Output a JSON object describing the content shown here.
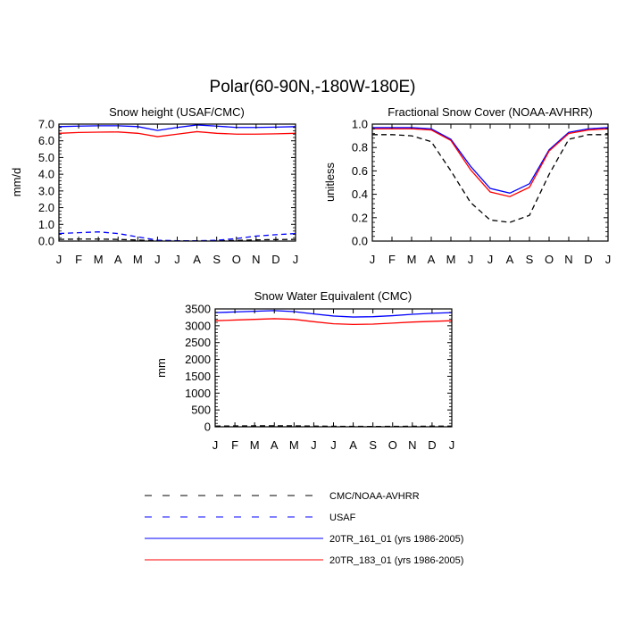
{
  "page_title": "Polar(60-90N,-180W-180E)",
  "months": [
    "J",
    "F",
    "M",
    "A",
    "M",
    "J",
    "J",
    "A",
    "S",
    "O",
    "N",
    "D",
    "J"
  ],
  "legend": [
    {
      "label": "CMC/NOAA-AVHRR",
      "color": "#000000",
      "dashed": true
    },
    {
      "label": "USAF",
      "color": "#0000ff",
      "dashed": true
    },
    {
      "label": "20TR_161_01 (yrs 1986-2005)",
      "color": "#0000ff",
      "dashed": false
    },
    {
      "label": "20TR_183_01 (yrs 1986-2005)",
      "color": "#ff0000",
      "dashed": false
    }
  ],
  "chart_data": [
    {
      "type": "line",
      "title": "Snow height (USAF/CMC)",
      "ylabel": "mm/d",
      "xlabel": "",
      "ylim": [
        0,
        7
      ],
      "yticks": [
        "0.0",
        "1.0",
        "2.0",
        "3.0",
        "4.0",
        "5.0",
        "6.0",
        "7.0"
      ],
      "ytick_values": [
        0,
        1,
        2,
        3,
        4,
        5,
        6,
        7
      ],
      "categories": [
        "J",
        "F",
        "M",
        "A",
        "M",
        "J",
        "J",
        "A",
        "S",
        "O",
        "N",
        "D",
        "J"
      ],
      "series": [
        {
          "name": "CMC/NOAA-AVHRR",
          "color": "#000000",
          "dashed": true,
          "values": [
            0.1,
            0.12,
            0.12,
            0.1,
            0.06,
            0.02,
            0.01,
            0.01,
            0.02,
            0.04,
            0.07,
            0.09,
            0.1
          ]
        },
        {
          "name": "USAF",
          "color": "#0000ff",
          "dashed": true,
          "values": [
            0.45,
            0.5,
            0.55,
            0.45,
            0.25,
            0.05,
            0.02,
            0.02,
            0.05,
            0.15,
            0.3,
            0.38,
            0.45
          ]
        },
        {
          "name": "20TR_161_01 (yrs 1986-2005)",
          "color": "#0000ff",
          "dashed": false,
          "values": [
            6.85,
            6.88,
            6.9,
            6.9,
            6.85,
            6.62,
            6.8,
            6.95,
            6.88,
            6.8,
            6.8,
            6.82,
            6.85
          ]
        },
        {
          "name": "20TR_183_01 (yrs 1986-2005)",
          "color": "#ff0000",
          "dashed": false,
          "values": [
            6.45,
            6.5,
            6.52,
            6.53,
            6.45,
            6.25,
            6.4,
            6.55,
            6.45,
            6.4,
            6.4,
            6.42,
            6.45
          ]
        }
      ]
    },
    {
      "type": "line",
      "title": "Fractional Snow Cover (NOAA-AVHRR)",
      "ylabel": "unitless",
      "xlabel": "",
      "ylim": [
        0,
        1
      ],
      "yticks": [
        "0.0",
        "0.2",
        "0.4",
        "0.6",
        "0.8",
        "1.0"
      ],
      "ytick_values": [
        0,
        0.2,
        0.4,
        0.6,
        0.8,
        1.0
      ],
      "categories": [
        "J",
        "F",
        "M",
        "A",
        "M",
        "J",
        "J",
        "A",
        "S",
        "O",
        "N",
        "D",
        "J"
      ],
      "series": [
        {
          "name": "CMC/NOAA-AVHRR",
          "color": "#000000",
          "dashed": true,
          "values": [
            0.91,
            0.91,
            0.9,
            0.85,
            0.6,
            0.33,
            0.18,
            0.16,
            0.22,
            0.57,
            0.87,
            0.91,
            0.91
          ]
        },
        {
          "name": "20TR_161_01 (yrs 1986-2005)",
          "color": "#0000ff",
          "dashed": false,
          "values": [
            0.97,
            0.97,
            0.97,
            0.96,
            0.87,
            0.64,
            0.45,
            0.41,
            0.49,
            0.78,
            0.93,
            0.96,
            0.97
          ]
        },
        {
          "name": "20TR_183_01 (yrs 1986-2005)",
          "color": "#ff0000",
          "dashed": false,
          "values": [
            0.96,
            0.96,
            0.96,
            0.95,
            0.86,
            0.61,
            0.42,
            0.38,
            0.46,
            0.77,
            0.92,
            0.95,
            0.96
          ]
        }
      ]
    },
    {
      "type": "line",
      "title": "Snow Water Equivalent (CMC)",
      "ylabel": "mm",
      "xlabel": "",
      "ylim": [
        0,
        3500
      ],
      "yticks": [
        "0",
        "500",
        "1000",
        "1500",
        "2000",
        "2500",
        "3000",
        "3500"
      ],
      "ytick_values": [
        0,
        500,
        1000,
        1500,
        2000,
        2500,
        3000,
        3500
      ],
      "categories": [
        "J",
        "F",
        "M",
        "A",
        "M",
        "J",
        "J",
        "A",
        "S",
        "O",
        "N",
        "D",
        "J"
      ],
      "series": [
        {
          "name": "CMC/NOAA-AVHRR",
          "color": "#000000",
          "dashed": true,
          "values": [
            20,
            25,
            28,
            30,
            28,
            20,
            15,
            12,
            10,
            12,
            15,
            18,
            20
          ]
        },
        {
          "name": "20TR_161_01 (yrs 1986-2005)",
          "color": "#0000ff",
          "dashed": false,
          "values": [
            3390,
            3410,
            3430,
            3450,
            3420,
            3350,
            3290,
            3260,
            3270,
            3300,
            3340,
            3370,
            3390
          ]
        },
        {
          "name": "20TR_183_01 (yrs 1986-2005)",
          "color": "#ff0000",
          "dashed": false,
          "values": [
            3150,
            3170,
            3190,
            3210,
            3190,
            3120,
            3060,
            3040,
            3050,
            3080,
            3110,
            3130,
            3150
          ]
        }
      ]
    }
  ]
}
